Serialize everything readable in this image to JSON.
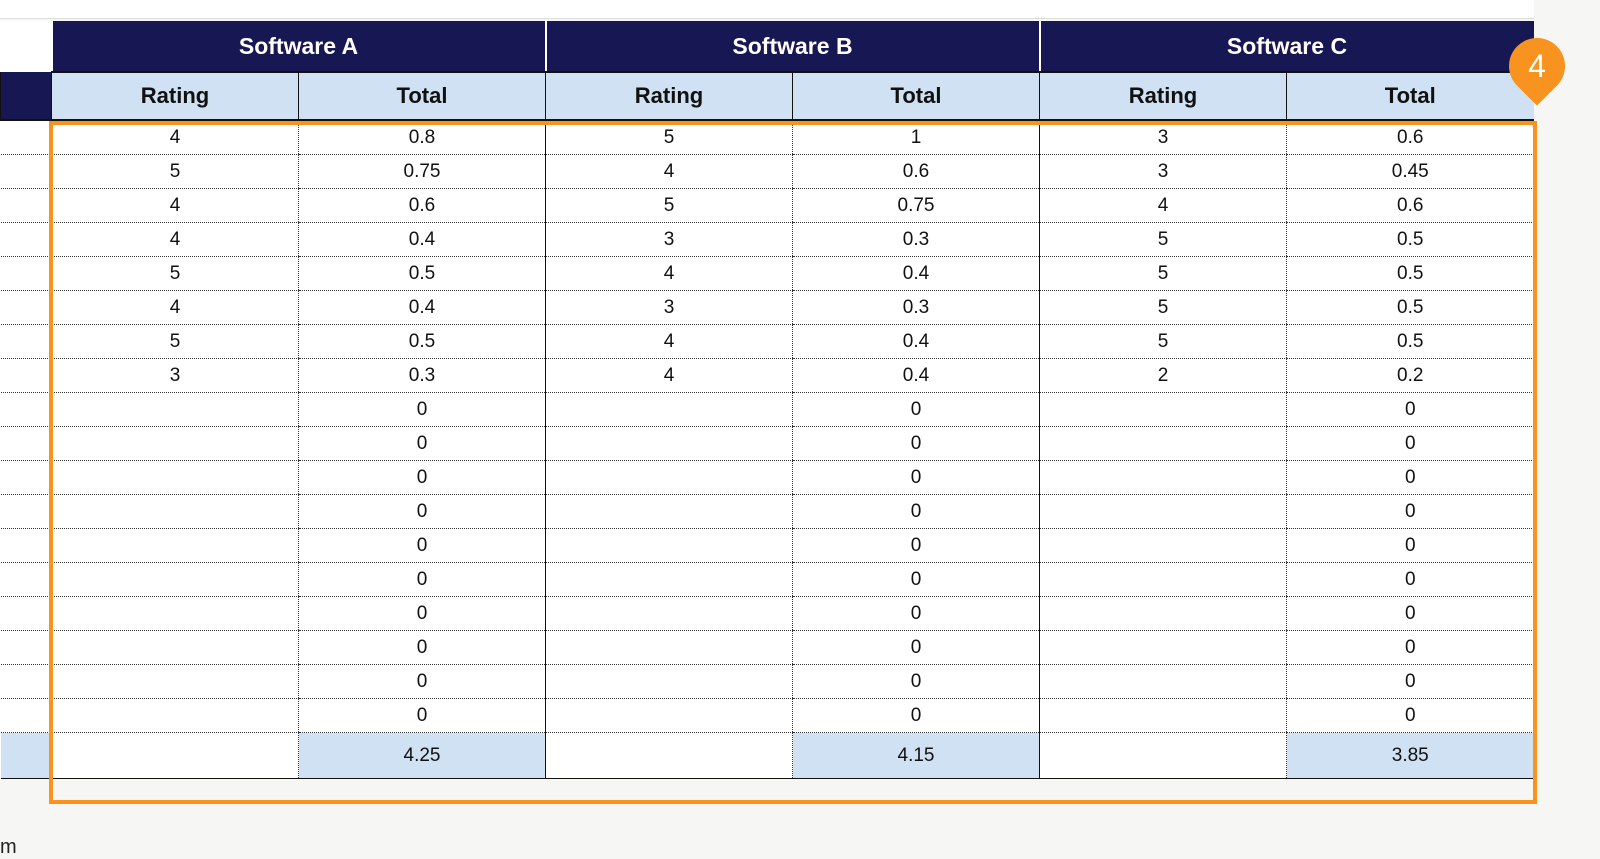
{
  "top_text": "",
  "groups": [
    "Software A",
    "Software B",
    "Software C"
  ],
  "subheaders": [
    "Rating",
    "Total",
    "Rating",
    "Total",
    "Rating",
    "Total"
  ],
  "rows": [
    [
      "4",
      "0.8",
      "5",
      "1",
      "3",
      "0.6"
    ],
    [
      "5",
      "0.75",
      "4",
      "0.6",
      "3",
      "0.45"
    ],
    [
      "4",
      "0.6",
      "5",
      "0.75",
      "4",
      "0.6"
    ],
    [
      "4",
      "0.4",
      "3",
      "0.3",
      "5",
      "0.5"
    ],
    [
      "5",
      "0.5",
      "4",
      "0.4",
      "5",
      "0.5"
    ],
    [
      "4",
      "0.4",
      "3",
      "0.3",
      "5",
      "0.5"
    ],
    [
      "5",
      "0.5",
      "4",
      "0.4",
      "5",
      "0.5"
    ],
    [
      "3",
      "0.3",
      "4",
      "0.4",
      "2",
      "0.2"
    ],
    [
      "",
      "0",
      "",
      "0",
      "",
      "0"
    ],
    [
      "",
      "0",
      "",
      "0",
      "",
      "0"
    ],
    [
      "",
      "0",
      "",
      "0",
      "",
      "0"
    ],
    [
      "",
      "0",
      "",
      "0",
      "",
      "0"
    ],
    [
      "",
      "0",
      "",
      "0",
      "",
      "0"
    ],
    [
      "",
      "0",
      "",
      "0",
      "",
      "0"
    ],
    [
      "",
      "0",
      "",
      "0",
      "",
      "0"
    ],
    [
      "",
      "0",
      "",
      "0",
      "",
      "0"
    ],
    [
      "",
      "0",
      "",
      "0",
      "",
      "0"
    ],
    [
      "",
      "0",
      "",
      "0",
      "",
      "0"
    ]
  ],
  "totals": [
    "4.25",
    "4.15",
    "3.85"
  ],
  "callout_number": "4",
  "footer_partial": "m",
  "colors": {
    "header_dark": "#171753",
    "header_light": "#cfe1f2",
    "highlight": "#f7931e"
  }
}
